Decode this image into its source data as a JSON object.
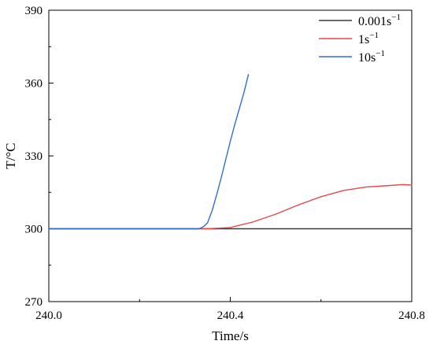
{
  "chart_data": {
    "type": "line",
    "title": "",
    "xlabel": "Time/s",
    "ylabel": "T/°C",
    "xlim": [
      240.0,
      240.8
    ],
    "ylim": [
      270,
      390
    ],
    "x_ticks": [
      240.0,
      240.4,
      240.8
    ],
    "x_tick_labels": [
      "240.0",
      "240.4",
      "240.8"
    ],
    "y_ticks": [
      270,
      300,
      330,
      360,
      390
    ],
    "y_tick_labels": [
      "270",
      "300",
      "330",
      "360",
      "390"
    ],
    "grid": false,
    "legend_position": "top-right",
    "series": [
      {
        "name": "0.001s⁻¹",
        "name_base": "0.001s",
        "name_sup": "−1",
        "color": "#3a3a3a",
        "x": [
          240.0,
          240.8
        ],
        "y": [
          300,
          300
        ]
      },
      {
        "name": "1s⁻¹",
        "name_base": "1s",
        "name_sup": "−1",
        "color": "#e8474b",
        "x": [
          240.0,
          240.2,
          240.33,
          240.36,
          240.4,
          240.45,
          240.5,
          240.55,
          240.6,
          240.65,
          240.7,
          240.75,
          240.78,
          240.8
        ],
        "y": [
          300,
          300,
          300,
          300.1,
          300.5,
          302.8,
          306,
          309.8,
          313.2,
          315.8,
          317.2,
          317.8,
          318.2,
          318
        ]
      },
      {
        "name": "10s⁻¹",
        "name_base": "10s",
        "name_sup": "−1",
        "color": "#2f6fd0",
        "x": [
          240.0,
          240.33,
          240.335,
          240.342,
          240.35,
          240.36,
          240.37,
          240.38,
          240.39,
          240.4,
          240.41,
          240.42,
          240.43,
          240.44
        ],
        "y": [
          300,
          300,
          300.3,
          301,
          302.5,
          307.5,
          314,
          321,
          328.5,
          336,
          343,
          349.5,
          356,
          363.5
        ]
      }
    ]
  }
}
